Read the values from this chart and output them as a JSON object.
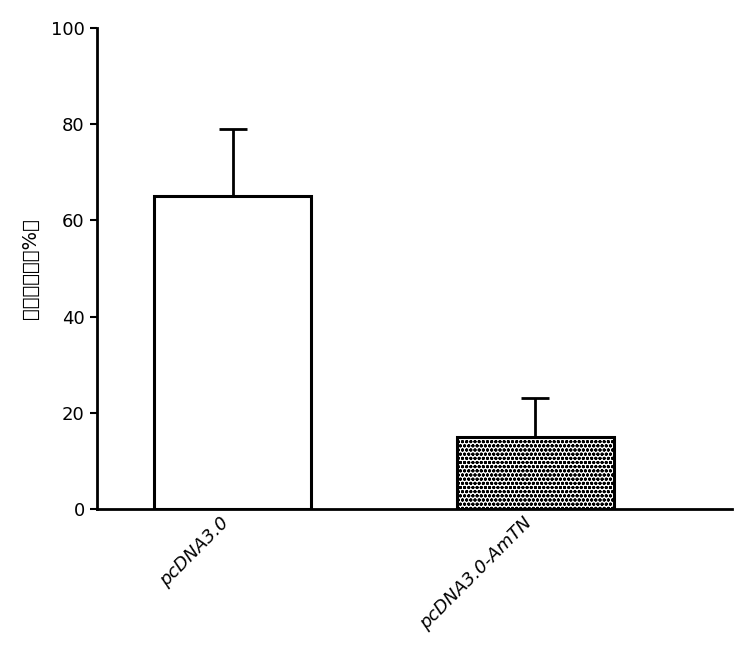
{
  "categories": [
    "pcDNA3.0",
    "pcDNA3.0-AmTN"
  ],
  "values": [
    65.0,
    15.0
  ],
  "errors_up": [
    14.0,
    8.0
  ],
  "bar_edgecolor": "#000000",
  "ylabel": "细胞增殖率（%）",
  "ylim": [
    0,
    100
  ],
  "yticks": [
    0,
    20,
    40,
    60,
    80,
    100
  ],
  "background_color": "#ffffff",
  "bar_linewidth": 2.2,
  "error_linewidth": 2.0,
  "error_capsize": 10,
  "xlabel_fontsize": 13,
  "ylabel_fontsize": 14,
  "tick_fontsize": 13,
  "bar_width": 0.52
}
